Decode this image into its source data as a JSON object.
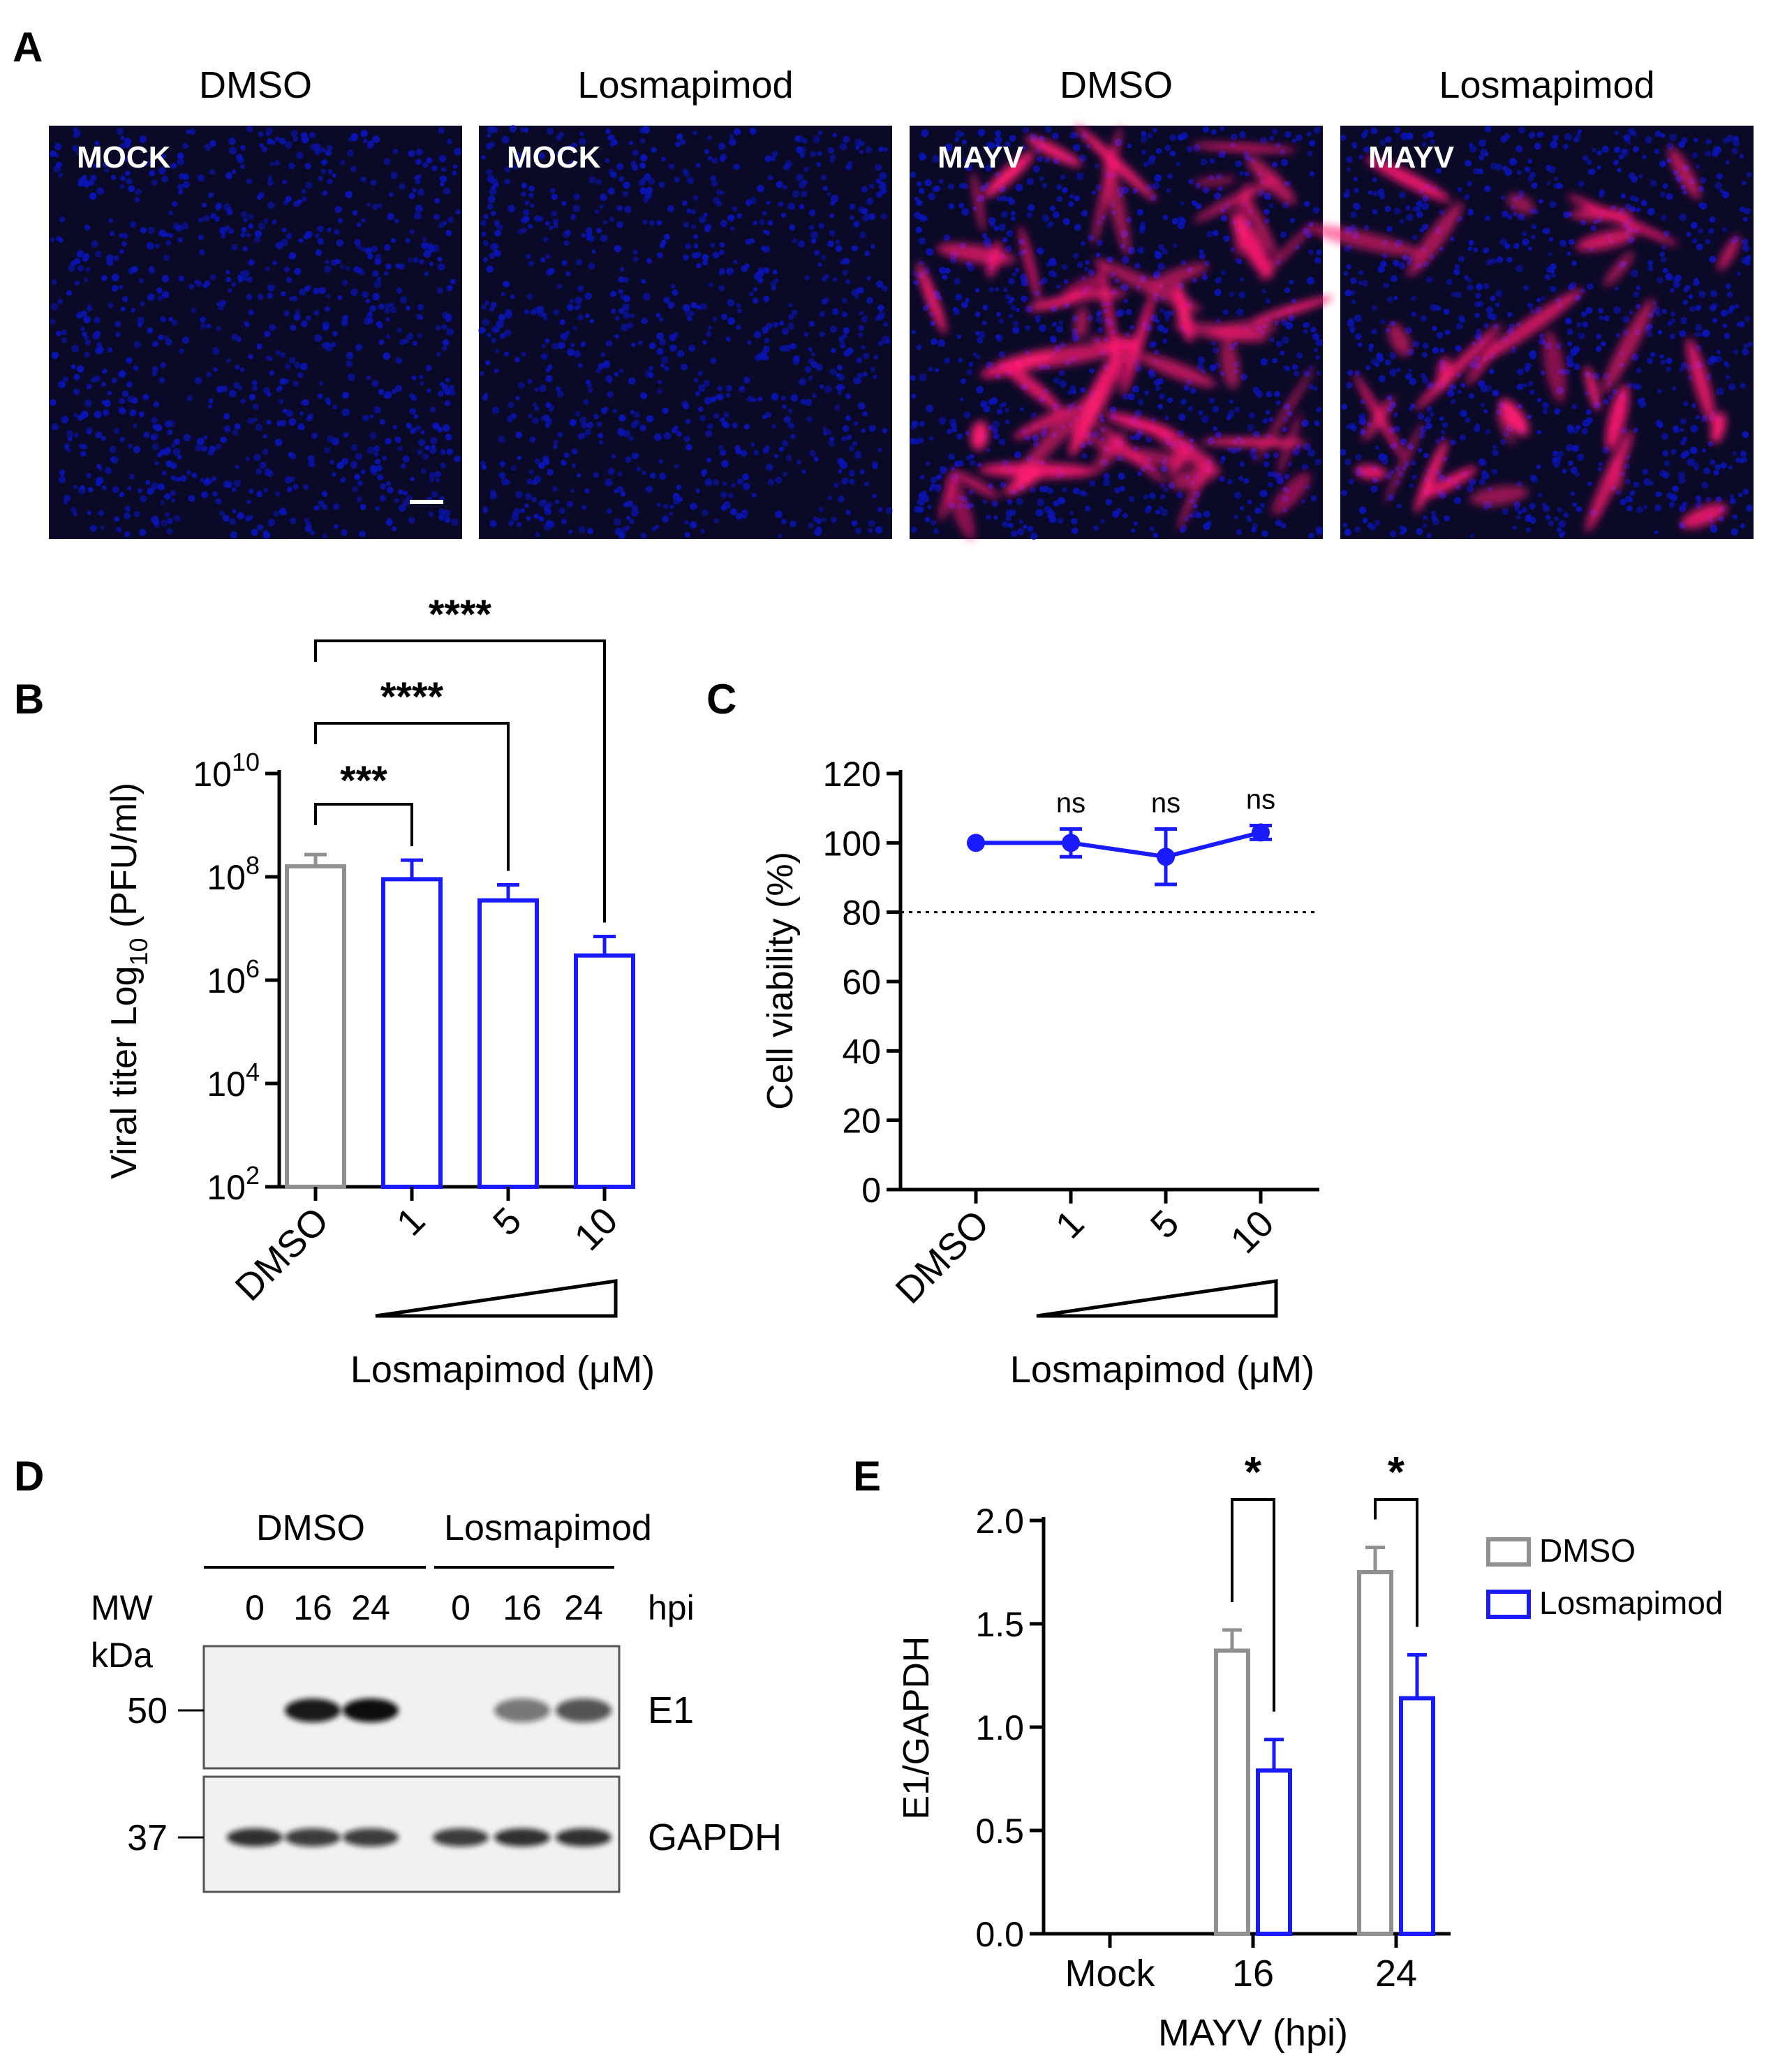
{
  "colors": {
    "gray": "#909090",
    "blue": "#1a1aff",
    "black": "#000000",
    "nuclei": "#0a14b4",
    "stain": "#ff1a70",
    "blotband": "#101010"
  },
  "panel_letters": {
    "A": "A",
    "B": "B",
    "C": "C",
    "D": "D",
    "E": "E"
  },
  "panelA": {
    "images": [
      {
        "header": "DMSO",
        "label": "MOCK",
        "infected": false,
        "intensity": 0
      },
      {
        "header": "Losmapimod",
        "label": "MOCK",
        "infected": false,
        "intensity": 0
      },
      {
        "header": "DMSO",
        "label": "MAYV",
        "infected": true,
        "intensity": 1.0
      },
      {
        "header": "Losmapimod",
        "label": "MAYV",
        "infected": true,
        "intensity": 0.55
      }
    ],
    "scale_bar": true
  },
  "chart_data": [
    {
      "panel": "B",
      "type": "bar",
      "ylabel": "Viral titer Log10 (PFU/ml)",
      "ylabel_main": "Viral titer Log",
      "ylabel_sub": "10",
      "ylabel_unit": "(PFU/ml)",
      "yscale": "log",
      "ylim": [
        100,
        10000000000
      ],
      "yticks": [
        {
          "value": 100,
          "base": "10",
          "exp": "2"
        },
        {
          "value": 10000,
          "base": "10",
          "exp": "4"
        },
        {
          "value": 1000000,
          "base": "10",
          "exp": "6"
        },
        {
          "value": 100000000,
          "base": "10",
          "exp": "8"
        },
        {
          "value": 10000000000,
          "base": "10",
          "exp": "10"
        }
      ],
      "categories": [
        "DMSO",
        "1",
        "5",
        "10"
      ],
      "values": [
        160000000,
        90000000,
        35000000,
        3000000
      ],
      "errors": [
        270000000,
        210000000,
        70000000,
        7000000
      ],
      "bar_colors": [
        "gray",
        "blue",
        "blue",
        "blue"
      ],
      "xlabel": "Losmapimod (μM)",
      "significance": [
        {
          "from": 0,
          "to": 1,
          "label": "***"
        },
        {
          "from": 0,
          "to": 2,
          "label": "****"
        },
        {
          "from": 0,
          "to": 3,
          "label": "****"
        }
      ]
    },
    {
      "panel": "C",
      "type": "line",
      "ylabel": "Cell viability (%)",
      "ylim": [
        0,
        120
      ],
      "yticks": [
        0,
        20,
        40,
        60,
        80,
        100,
        120
      ],
      "categories": [
        "DMSO",
        "1",
        "5",
        "10"
      ],
      "values": [
        100,
        100,
        96,
        103
      ],
      "errors": [
        0,
        4,
        8,
        2
      ],
      "annotations": [
        "",
        "ns",
        "ns",
        "ns"
      ],
      "reference_line": 80,
      "xlabel": "Losmapimod (μM)"
    },
    {
      "panel": "E",
      "type": "bar",
      "ylabel": "E1/GAPDH",
      "xlabel": "MAYV (hpi)",
      "ylim": [
        0,
        2.0
      ],
      "yticks": [
        "0.0",
        "0.5",
        "1.0",
        "1.5",
        "2.0"
      ],
      "categories": [
        "Mock",
        "16",
        "24"
      ],
      "series": [
        {
          "name": "DMSO",
          "color": "gray",
          "values": [
            0,
            1.37,
            1.75
          ],
          "errors": [
            0,
            0.1,
            0.12
          ]
        },
        {
          "name": "Losmapimod",
          "color": "blue",
          "values": [
            0,
            0.79,
            1.14
          ],
          "errors": [
            0,
            0.15,
            0.21
          ]
        }
      ],
      "significance": [
        {
          "category": 1,
          "label": "*"
        },
        {
          "category": 2,
          "label": "*"
        }
      ],
      "legend_position": "top-right"
    }
  ],
  "panelD": {
    "groups": [
      "DMSO",
      "Losmapimod"
    ],
    "mw_label": "MW",
    "kda_label": "kDa",
    "hpi_label": "hpi",
    "timepoints": [
      "0",
      "16",
      "24",
      "0",
      "16",
      "24"
    ],
    "blots": [
      {
        "name": "E1",
        "marker": "50",
        "intensities": [
          0,
          0.95,
          1.0,
          0,
          0.55,
          0.7
        ]
      },
      {
        "name": "GAPDH",
        "marker": "37",
        "intensities": [
          0.85,
          0.8,
          0.8,
          0.8,
          0.85,
          0.85
        ]
      }
    ]
  }
}
